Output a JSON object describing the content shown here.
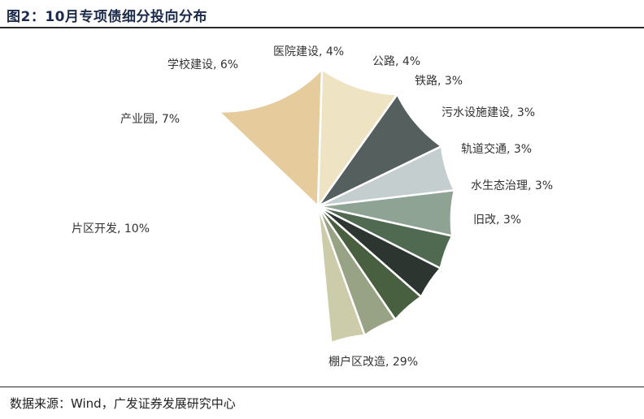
{
  "header": {
    "title": "图2：10月专项债细分投向分布"
  },
  "footer": {
    "source": "数据来源：Wind，广发证券发展研究中心"
  },
  "chart_data": {
    "type": "pie",
    "title": "图2：10月专项债细分投向分布",
    "slices": [
      {
        "name": "棚户区改造",
        "value": 29,
        "label": "棚户区改造, 29%",
        "color": "#CBA083"
      },
      {
        "name": "片区开发",
        "value": 10,
        "label": "片区开发, 10%",
        "color": "#E6CC9C"
      },
      {
        "name": "产业园",
        "value": 7,
        "label": "产业园, 7%",
        "color": "#EEE4C3"
      },
      {
        "name": "学校建设",
        "value": 6,
        "label": "学校建设, 6%",
        "color": "#545F5E"
      },
      {
        "name": "医院建设",
        "value": 4,
        "label": "医院建设, 4%",
        "color": "#C4CECE"
      },
      {
        "name": "公路",
        "value": 4,
        "label": "公路, 4%",
        "color": "#8FA395"
      },
      {
        "name": "铁路",
        "value": 3,
        "label": "铁路, 3%",
        "color": "#4F6A50"
      },
      {
        "name": "污水设施建设",
        "value": 3,
        "label": "污水设施建设, 3%",
        "color": "#2D3530"
      },
      {
        "name": "轨道交通",
        "value": 3,
        "label": "轨道交通, 3%",
        "color": "#48603F"
      },
      {
        "name": "水生态治理",
        "value": 3,
        "label": "水生态治理, 3%",
        "color": "#98A385"
      },
      {
        "name": "旧改",
        "value": 3,
        "label": "旧改, 3%",
        "color": "#CDCCAA"
      }
    ]
  }
}
